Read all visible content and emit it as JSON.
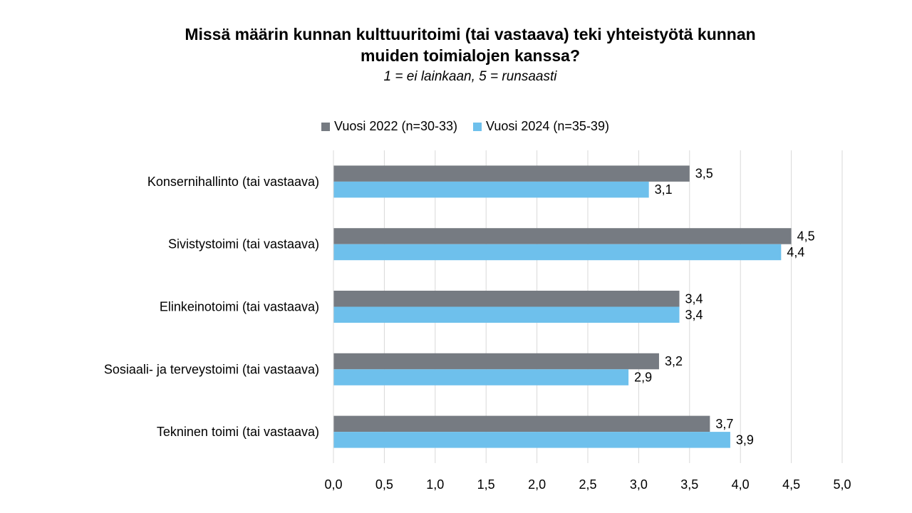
{
  "title": {
    "line1": "Missä määrin kunnan kulttuuritoimi (tai vastaava) teki yhteistyötä kunnan",
    "line2": "muiden toimialojen kanssa?"
  },
  "subtitle": "1 = ei lainkaan, 5 = runsaasti",
  "legend": [
    {
      "label": "Vuosi 2022 (n=30-33)",
      "color": "#767b82"
    },
    {
      "label": "Vuosi 2024 (n=35-39)",
      "color": "#6ec0ec"
    }
  ],
  "chart_data": {
    "type": "bar",
    "orientation": "horizontal",
    "categories": [
      "Konsernihallinto (tai vastaava)",
      "Sivistystoimi (tai vastaava)",
      "Elinkeinotoimi (tai vastaava)",
      "Sosiaali- ja terveystoimi (tai vastaava)",
      "Tekninen toimi (tai vastaava)"
    ],
    "series": [
      {
        "name": "Vuosi 2022 (n=30-33)",
        "color": "#767b82",
        "values": [
          3.5,
          4.5,
          3.4,
          3.2,
          3.7
        ],
        "labels": [
          "3,5",
          "4,5",
          "3,4",
          "3,2",
          "3,7"
        ]
      },
      {
        "name": "Vuosi 2024 (n=35-39)",
        "color": "#6ec0ec",
        "values": [
          3.1,
          4.4,
          3.4,
          2.9,
          3.9
        ],
        "labels": [
          "3,1",
          "4,4",
          "3,4",
          "2,9",
          "3,9"
        ]
      }
    ],
    "xlim": [
      0,
      5
    ],
    "xticks": [
      0,
      0.5,
      1,
      1.5,
      2,
      2.5,
      3,
      3.5,
      4,
      4.5,
      5
    ],
    "xtick_labels": [
      "0,0",
      "0,5",
      "1,0",
      "1,5",
      "2,0",
      "2,5",
      "3,0",
      "3,5",
      "4,0",
      "4,5",
      "5,0"
    ],
    "grid": "vertical",
    "legend_position": "top"
  }
}
